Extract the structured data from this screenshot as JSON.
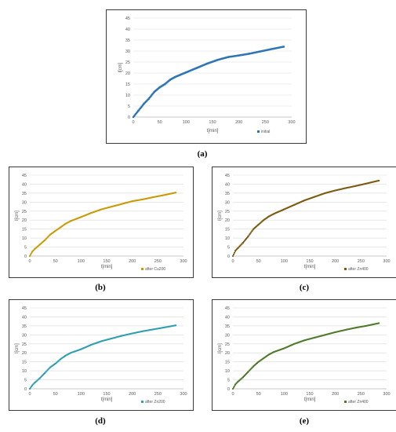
{
  "captions": [
    "(a)",
    "(b)",
    "(c)",
    "(d)",
    "(e)"
  ],
  "chart_data": [
    {
      "type": "scatter",
      "id": "a",
      "xlabel": "t[min]",
      "ylabel": "l[cm]",
      "xlim": [
        0,
        300
      ],
      "ylim": [
        0,
        45
      ],
      "xticks": [
        0,
        50,
        100,
        150,
        200,
        250,
        300
      ],
      "yticks": [
        0,
        5,
        10,
        15,
        20,
        25,
        30,
        35,
        40,
        45
      ],
      "grid": true,
      "legend_position": "bottom-right",
      "series": [
        {
          "name": "initial",
          "color": "#2e75b6",
          "x": [
            0,
            10,
            20,
            30,
            40,
            50,
            60,
            70,
            80,
            90,
            100,
            120,
            140,
            160,
            180,
            200,
            220,
            240,
            260,
            285
          ],
          "y": [
            0,
            3,
            6,
            8.5,
            11.5,
            13.5,
            15,
            17,
            18.3,
            19.3,
            20.3,
            22.3,
            24.3,
            26,
            27.3,
            28,
            28.8,
            29.8,
            30.8,
            32
          ]
        }
      ]
    },
    {
      "type": "scatter",
      "id": "b",
      "xlabel": "t[min]",
      "ylabel": "l[cm]",
      "xlim": [
        0,
        300
      ],
      "ylim": [
        0,
        45
      ],
      "xticks": [
        0,
        50,
        100,
        150,
        200,
        250,
        300
      ],
      "yticks": [
        0,
        5,
        10,
        15,
        20,
        25,
        30,
        35,
        40,
        45
      ],
      "grid": true,
      "legend_position": "bottom-right",
      "series": [
        {
          "name": "after Cu200",
          "color": "#c99a06",
          "x": [
            0,
            5,
            10,
            20,
            30,
            40,
            50,
            60,
            70,
            80,
            100,
            120,
            140,
            160,
            180,
            200,
            220,
            240,
            260,
            285
          ],
          "y": [
            0,
            2.5,
            4,
            6.5,
            9,
            12,
            14,
            16,
            18,
            19.5,
            21.7,
            24,
            26,
            27.5,
            29,
            30.5,
            31.5,
            32.7,
            33.8,
            35.3
          ]
        }
      ]
    },
    {
      "type": "scatter",
      "id": "c",
      "xlabel": "t[min]",
      "ylabel": "l[cm]",
      "xlim": [
        0,
        300
      ],
      "ylim": [
        0,
        45
      ],
      "xticks": [
        0,
        50,
        100,
        150,
        200,
        250,
        300
      ],
      "yticks": [
        0,
        5,
        10,
        15,
        20,
        25,
        30,
        35,
        40,
        45
      ],
      "grid": true,
      "legend_position": "bottom-right",
      "series": [
        {
          "name": "after Zn400",
          "color": "#7a5a10",
          "x": [
            0,
            5,
            10,
            20,
            30,
            40,
            50,
            60,
            70,
            80,
            100,
            120,
            140,
            160,
            180,
            200,
            220,
            240,
            260,
            285
          ],
          "y": [
            0,
            3,
            4.5,
            7.5,
            11,
            15,
            17.5,
            20,
            22,
            23.5,
            26,
            28.5,
            31,
            33,
            35,
            36.5,
            37.8,
            39,
            40.3,
            42
          ]
        }
      ]
    },
    {
      "type": "scatter",
      "id": "d",
      "xlabel": "t[min]",
      "ylabel": "l[cm]",
      "xlim": [
        0,
        300
      ],
      "ylim": [
        0,
        45
      ],
      "xticks": [
        0,
        50,
        100,
        150,
        200,
        250,
        300
      ],
      "yticks": [
        0,
        5,
        10,
        15,
        20,
        25,
        30,
        35,
        40,
        45
      ],
      "grid": true,
      "legend_position": "bottom-right",
      "series": [
        {
          "name": "after Zn200",
          "color": "#2e9fb0",
          "x": [
            0,
            5,
            10,
            20,
            30,
            40,
            50,
            60,
            70,
            80,
            100,
            120,
            140,
            160,
            180,
            200,
            220,
            240,
            260,
            285
          ],
          "y": [
            0,
            2,
            3.5,
            6,
            9,
            12,
            14,
            16.5,
            18.5,
            20,
            22,
            24.5,
            26.5,
            28,
            29.5,
            30.8,
            32,
            33,
            34,
            35.3
          ]
        }
      ]
    },
    {
      "type": "scatter",
      "id": "e",
      "xlabel": "t[min]",
      "ylabel": "l[cm]",
      "xlim": [
        0,
        300
      ],
      "ylim": [
        0,
        45
      ],
      "xticks": [
        0,
        50,
        100,
        150,
        200,
        250,
        300
      ],
      "yticks": [
        0,
        5,
        10,
        15,
        20,
        25,
        30,
        35,
        40,
        45
      ],
      "grid": true,
      "legend_position": "bottom-right",
      "series": [
        {
          "name": "after Zn400",
          "color": "#4e7a2a",
          "x": [
            0,
            5,
            10,
            20,
            30,
            40,
            50,
            60,
            70,
            80,
            100,
            120,
            140,
            160,
            180,
            200,
            220,
            240,
            260,
            285
          ],
          "y": [
            0,
            2.5,
            4,
            6.5,
            9.5,
            12.5,
            15,
            17,
            19,
            20.5,
            22.5,
            25,
            27,
            28.5,
            30,
            31.5,
            32.8,
            34,
            35,
            36.5
          ]
        }
      ]
    }
  ]
}
